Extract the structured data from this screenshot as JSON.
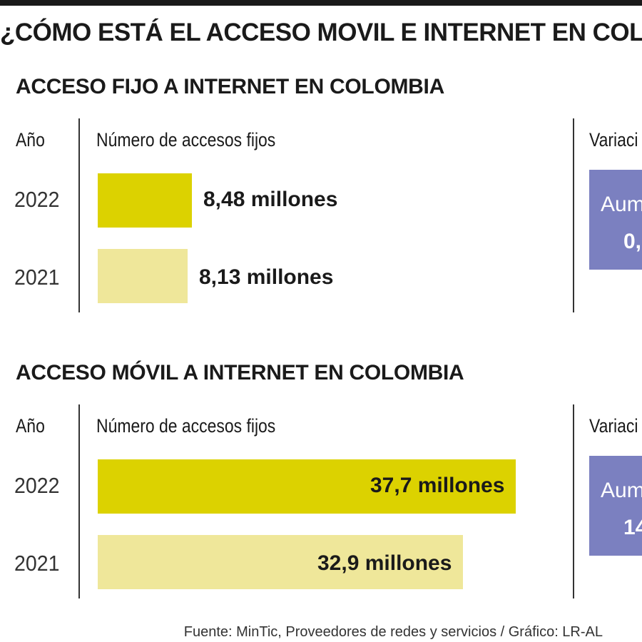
{
  "title": "¿CÓMO ESTÁ EL ACCESO MOVIL E INTERNET EN COLO",
  "source": "Fuente: MinTic, Proveedores de redes y servicios / Gráfico: LR-AL",
  "colors": {
    "bar_2022": "#dcd200",
    "bar_2021": "#efe79a",
    "variation_box": "#7b80c0"
  },
  "chart_data": [
    {
      "type": "bar",
      "orientation": "horizontal",
      "title": "ACCESO FIJO A INTERNET EN COLOMBIA",
      "columns": {
        "year": "Año",
        "number": "Número de accesos fijos",
        "variation": "Variaci"
      },
      "categories": [
        "2022",
        "2021"
      ],
      "values": [
        8.48,
        8.13
      ],
      "value_labels": [
        "8,48 millones",
        "8,13 millones"
      ],
      "unit": "millones",
      "variation": {
        "line1": "Aum",
        "line2": "0,"
      }
    },
    {
      "type": "bar",
      "orientation": "horizontal",
      "title": "ACCESO MÓVIL A INTERNET EN COLOMBIA",
      "columns": {
        "year": "Año",
        "number": "Número de accesos fijos",
        "variation": "Variaci"
      },
      "categories": [
        "2022",
        "2021"
      ],
      "values": [
        37.7,
        32.9
      ],
      "value_labels": [
        "37,7 millones",
        "32,9 millones"
      ],
      "unit": "millones",
      "variation": {
        "line1": "Aum",
        "line2": "14"
      }
    }
  ]
}
